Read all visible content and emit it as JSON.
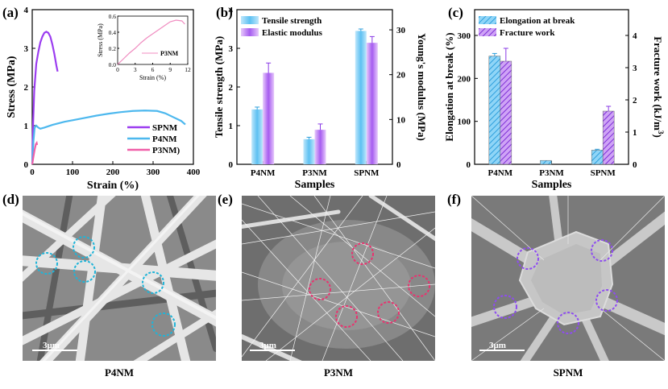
{
  "panels": {
    "a": {
      "label": "(a)"
    },
    "b": {
      "label": "(b)"
    },
    "c": {
      "label": "(c)"
    },
    "d": {
      "label": "(d)",
      "caption": "P4NM",
      "scale": "3μm"
    },
    "e": {
      "label": "(e)",
      "caption": "P3NM",
      "scale": "3μm"
    },
    "f": {
      "label": "(f)",
      "caption": "SPNM",
      "scale": "3μm"
    }
  },
  "colors": {
    "SPNM": "#9b3cf0",
    "P4NM": "#4db8ee",
    "P3NM": "#f05fa8",
    "P3NM_inset": "#f08cc0"
  },
  "chart_data": [
    {
      "type": "line",
      "xlabel": "Strain (%)",
      "ylabel": "Stress (MPa)",
      "xlim": [
        0,
        400
      ],
      "ylim": [
        0,
        4
      ],
      "xticks": [
        "0",
        "100",
        "200",
        "300",
        "400"
      ],
      "yticks": [
        "0",
        "1",
        "2",
        "3",
        "4"
      ],
      "legend_position": "bottom-right",
      "series": [
        {
          "name": "SPNM",
          "x": [
            0,
            2,
            5,
            10,
            15,
            20,
            25,
            30,
            35,
            40,
            45,
            50,
            55,
            60,
            63
          ],
          "y": [
            0,
            1.0,
            1.9,
            2.6,
            2.9,
            3.15,
            3.3,
            3.4,
            3.43,
            3.4,
            3.3,
            3.1,
            2.85,
            2.55,
            2.4
          ]
        },
        {
          "name": "P4NM",
          "x": [
            0,
            3,
            6,
            10,
            15,
            20,
            30,
            50,
            80,
            100,
            130,
            160,
            190,
            220,
            250,
            280,
            310,
            330,
            350,
            370,
            380
          ],
          "y": [
            0,
            0.6,
            0.95,
            1.0,
            0.95,
            0.92,
            0.95,
            1.02,
            1.1,
            1.14,
            1.2,
            1.26,
            1.31,
            1.35,
            1.38,
            1.39,
            1.38,
            1.32,
            1.22,
            1.12,
            1.03
          ]
        },
        {
          "name": "P3NM)",
          "x": [
            0,
            3,
            6,
            9,
            11,
            12
          ],
          "y": [
            0,
            0.2,
            0.38,
            0.52,
            0.55,
            0.5
          ]
        }
      ],
      "inset": {
        "type": "line",
        "xlabel": "Strain (%)",
        "ylabel": "Stress (MPa)",
        "xlim": [
          0,
          12
        ],
        "ylim": [
          0,
          0.6
        ],
        "xticks": [
          "0",
          "3",
          "6",
          "9",
          "12"
        ],
        "yticks": [
          "0.0",
          "0.2",
          "0.4",
          "0.6"
        ],
        "series": [
          {
            "name": "P3NM",
            "x": [
              0,
              1,
              2,
              3,
              4,
              5,
              6,
              7,
              8,
              9,
              10,
              11,
              11.5
            ],
            "y": [
              0,
              0.07,
              0.14,
              0.2,
              0.27,
              0.33,
              0.38,
              0.43,
              0.48,
              0.53,
              0.55,
              0.54,
              0.5
            ]
          }
        ]
      }
    },
    {
      "type": "bar",
      "xlabel": "Samples",
      "ylabel": "Tensile strength (MPa)",
      "y2label": "Young's modulus (MPa)",
      "categories": [
        "P4NM",
        "P3NM",
        "SPNM"
      ],
      "ylim": [
        0,
        4
      ],
      "y2lim": [
        0,
        34.5
      ],
      "yticks": [
        "0",
        "1",
        "2",
        "3",
        "4"
      ],
      "y2ticks": [
        "0",
        "10",
        "20",
        "30"
      ],
      "legend_position": "top-left",
      "series": [
        {
          "name": "Tensile strength",
          "axis": "left",
          "values": [
            1.42,
            0.65,
            3.45
          ],
          "errors": [
            0.06,
            0.05,
            0.05
          ]
        },
        {
          "name": "Elastic modulus",
          "axis": "right",
          "values": [
            20.4,
            7.7,
            27.1
          ],
          "errors": [
            2.2,
            1.3,
            1.4
          ]
        }
      ]
    },
    {
      "type": "bar",
      "xlabel": "Samples",
      "ylabel": "Elongation at break (%)",
      "y2label": "Fracture work (kJ/m",
      "y2label_sup": "3",
      "y2label_end": ")",
      "categories": [
        "P4NM",
        "P3NM",
        "SPNM"
      ],
      "ylim": [
        0,
        360
      ],
      "y2lim": [
        0,
        4.8
      ],
      "yticks": [
        "0",
        "100",
        "200",
        "300"
      ],
      "y2ticks": [
        "0",
        "1",
        "2",
        "3",
        "4"
      ],
      "legend_position": "top-left",
      "series": [
        {
          "name": "Elongation at break",
          "axis": "left",
          "values": [
            252,
            9,
            33
          ],
          "errors": [
            6,
            0,
            2
          ]
        },
        {
          "name": "Fracture work",
          "axis": "right",
          "values": [
            3.2,
            0,
            1.65
          ],
          "errors": [
            0.4,
            0,
            0.15
          ]
        }
      ]
    }
  ]
}
